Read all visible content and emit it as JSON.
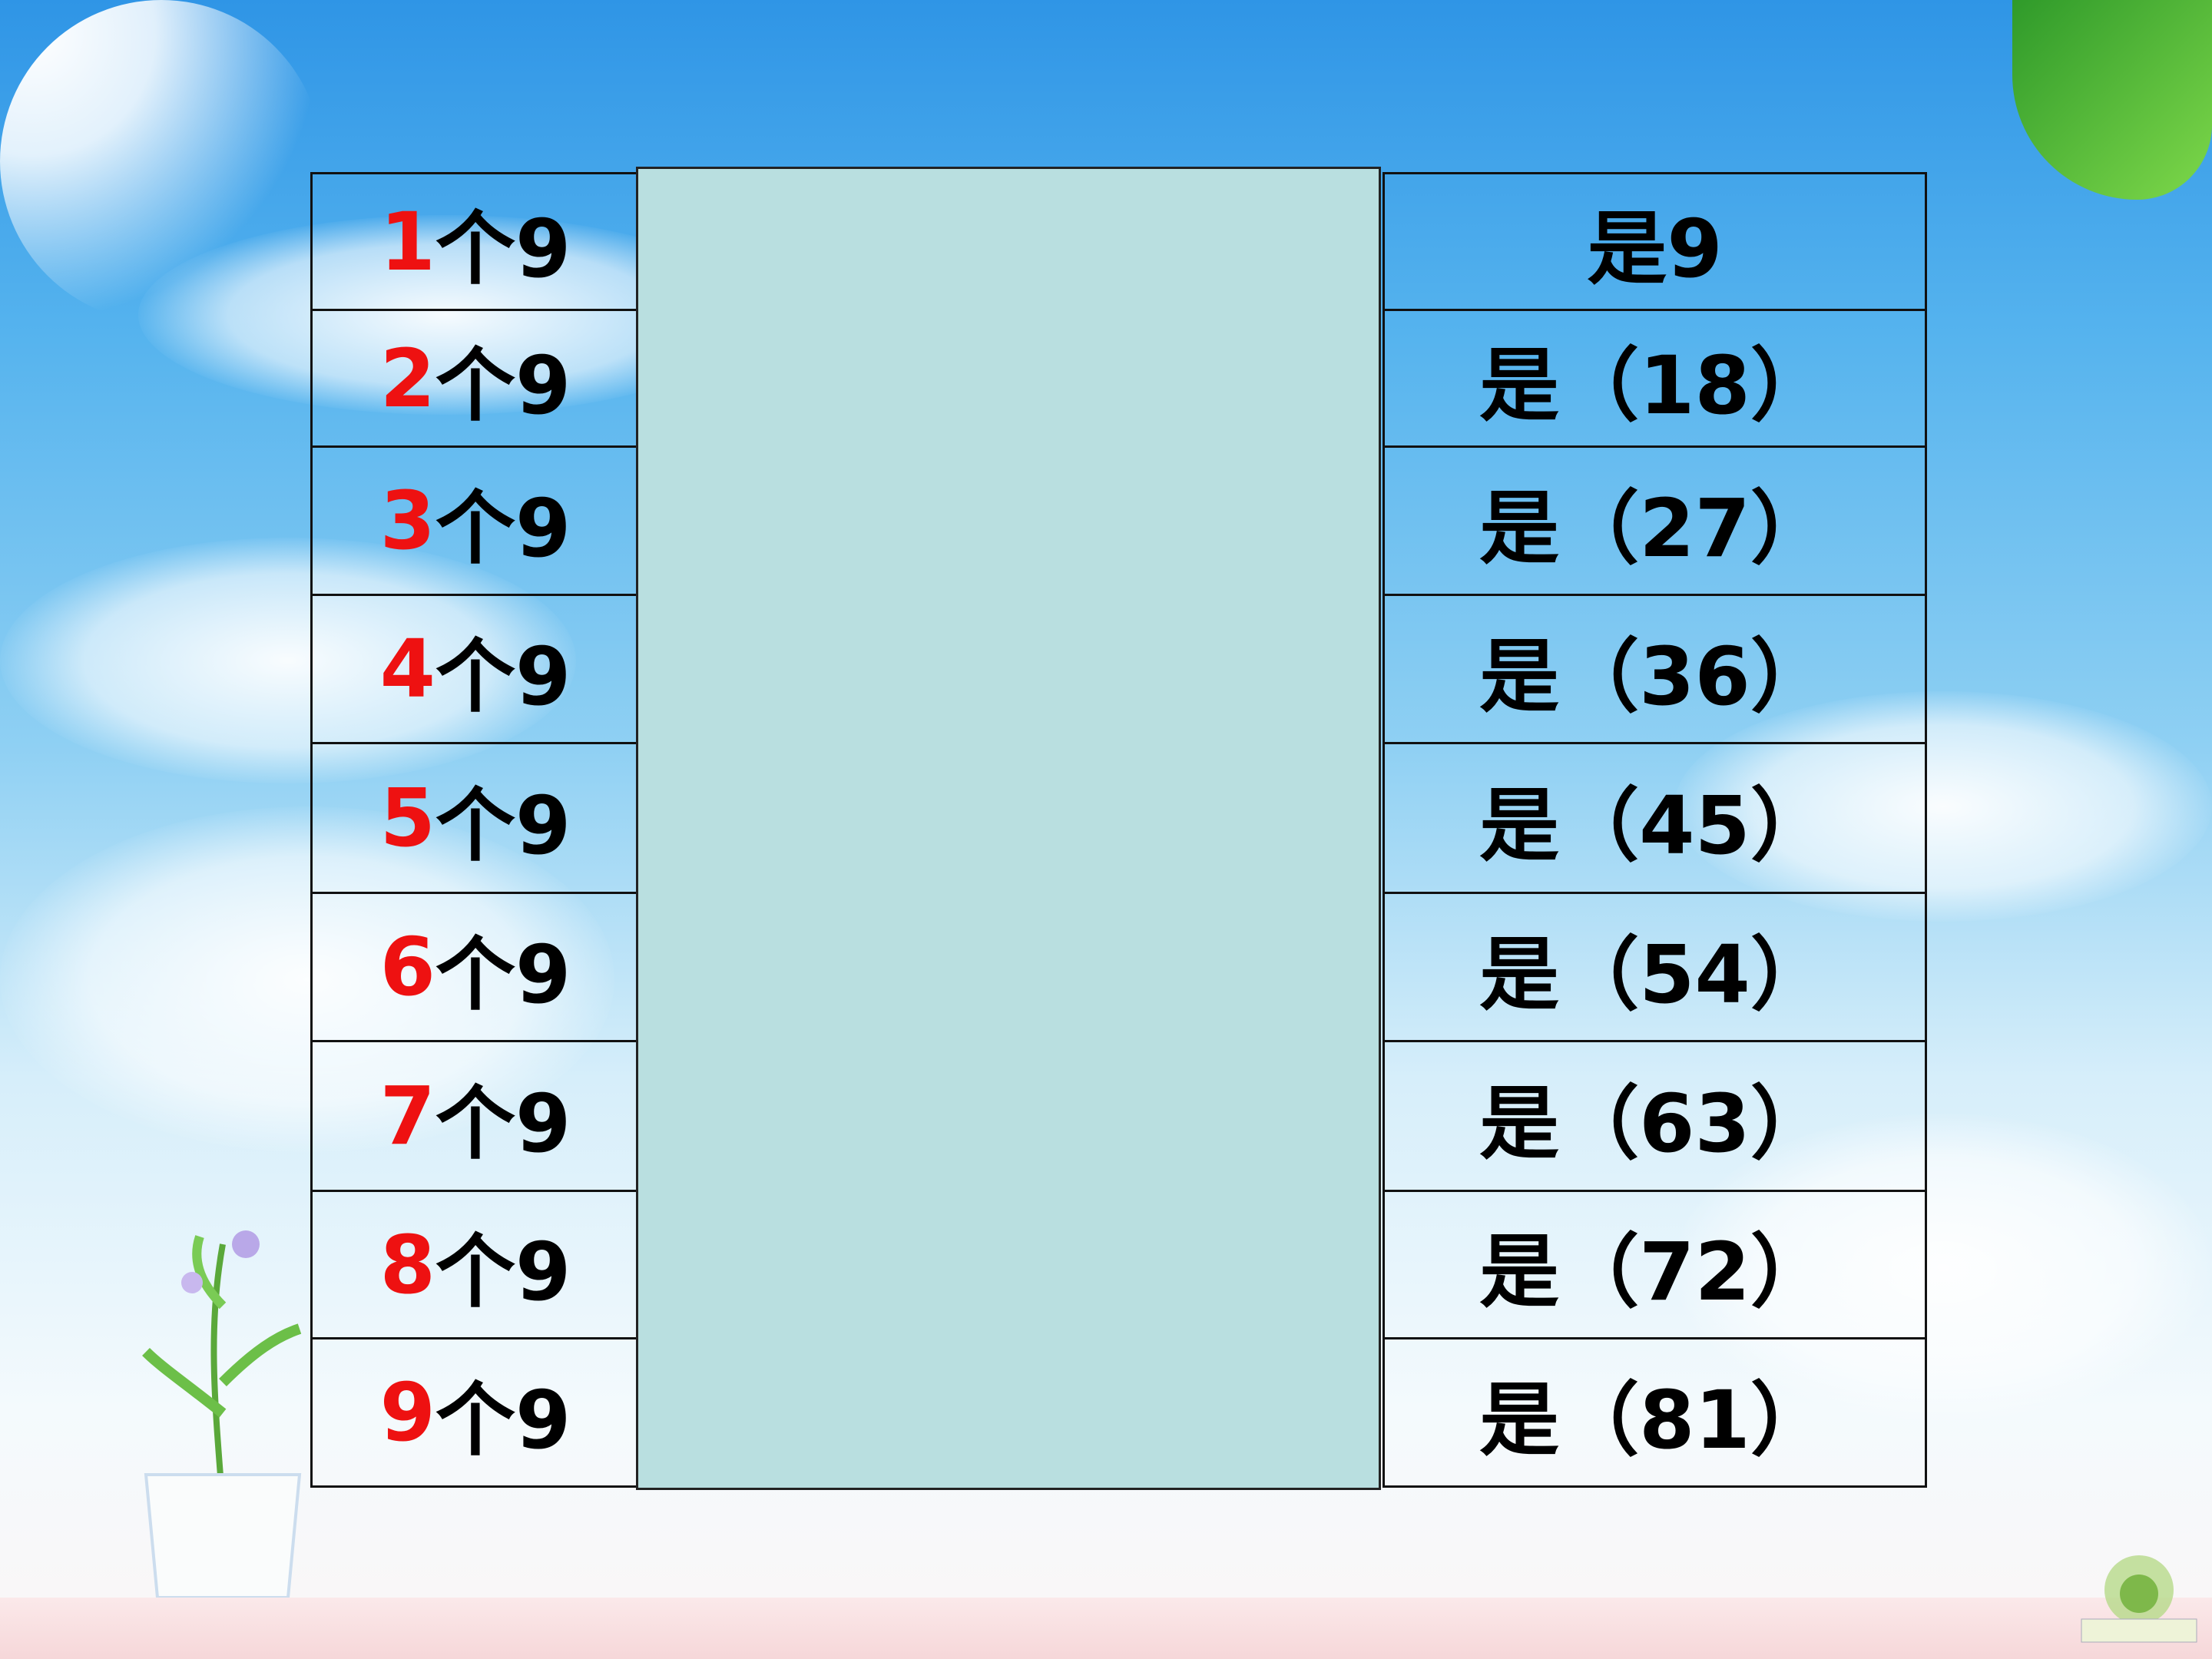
{
  "left_column": [
    {
      "number": "1",
      "suffix": "个9"
    },
    {
      "number": "2",
      "suffix": "个9"
    },
    {
      "number": "3",
      "suffix": "个9"
    },
    {
      "number": "4",
      "suffix": "个9"
    },
    {
      "number": "5",
      "suffix": "个9"
    },
    {
      "number": "6",
      "suffix": "个9"
    },
    {
      "number": "7",
      "suffix": "个9"
    },
    {
      "number": "8",
      "suffix": "个9"
    },
    {
      "number": "9",
      "suffix": "个9"
    }
  ],
  "right_column": [
    "是9",
    "是（18）",
    "是（27）",
    "是（36）",
    "是（45）",
    "是（54）",
    "是（63）",
    "是（72）",
    "是（81）"
  ],
  "colors": {
    "number": "#ee1111",
    "cover": "#b9dfe0",
    "border": "#111111"
  }
}
